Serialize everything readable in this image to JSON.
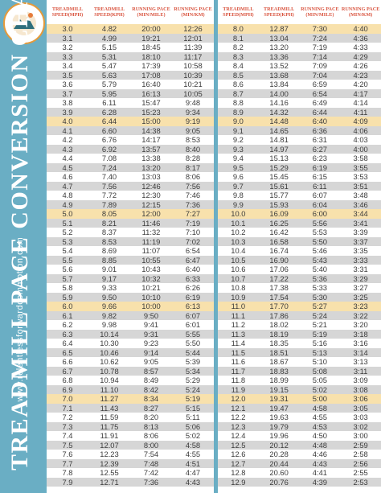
{
  "title": "TREADMILL PACE CONVERSION CHART",
  "website": "www.relentlessforwardcommotion.com",
  "logo_text": "COACH HEATHER HART · RUN COACHING FOR WOMEN",
  "headers": [
    "TREADMILL SPEED(MPH)",
    "TREADMILL SPEED(KPH)",
    "RUNNING PACE (MIN/MILE)",
    "RUNNING PACE (MIN/KM)"
  ],
  "colors": {
    "accent": "#6aaec4",
    "header_text": "#d9543f",
    "highlight": "#f8e1ac",
    "stripe": "#d6d6d6"
  },
  "left_rows": [
    [
      "3.0",
      "4.82",
      "20:00",
      "12:26"
    ],
    [
      "3.1",
      "4.99",
      "19:21",
      "12:01"
    ],
    [
      "3.2",
      "5.15",
      "18:45",
      "11:39"
    ],
    [
      "3.3",
      "5.31",
      "18:10",
      "11:17"
    ],
    [
      "3.4",
      "5.47",
      "17:39",
      "10:58"
    ],
    [
      "3.5",
      "5.63",
      "17:08",
      "10:39"
    ],
    [
      "3.6",
      "5.79",
      "16:40",
      "10:21"
    ],
    [
      "3.7",
      "5.95",
      "16:13",
      "10:05"
    ],
    [
      "3.8",
      "6.11",
      "15:47",
      "9:48"
    ],
    [
      "3.9",
      "6.28",
      "15:23",
      "9:34"
    ],
    [
      "4.0",
      "6.44",
      "15:00",
      "9:19"
    ],
    [
      "4.1",
      "6.60",
      "14:38",
      "9:05"
    ],
    [
      "4.2",
      "6.76",
      "14:17",
      "8:53"
    ],
    [
      "4.3",
      "6.92",
      "13:57",
      "8:40"
    ],
    [
      "4.4",
      "7.08",
      "13:38",
      "8:28"
    ],
    [
      "4.5",
      "7.24",
      "13:20",
      "8:17"
    ],
    [
      "4.6",
      "7.40",
      "13:03",
      "8:06"
    ],
    [
      "4.7",
      "7.56",
      "12:46",
      "7:56"
    ],
    [
      "4.8",
      "7.72",
      "12:30",
      "7:46"
    ],
    [
      "4.9",
      "7.89",
      "12:15",
      "7:36"
    ],
    [
      "5.0",
      "8.05",
      "12:00",
      "7:27"
    ],
    [
      "5.1",
      "8.21",
      "11:46",
      "7:19"
    ],
    [
      "5.2",
      "8.37",
      "11:32",
      "7:10"
    ],
    [
      "5.3",
      "8.53",
      "11:19",
      "7:02"
    ],
    [
      "5.4",
      "8.69",
      "11:07",
      "6:54"
    ],
    [
      "5.5",
      "8.85",
      "10:55",
      "6:47"
    ],
    [
      "5.6",
      "9.01",
      "10:43",
      "6:40"
    ],
    [
      "5.7",
      "9.17",
      "10:32",
      "6:33"
    ],
    [
      "5.8",
      "9.33",
      "10:21",
      "6:26"
    ],
    [
      "5.9",
      "9.50",
      "10:10",
      "6:19"
    ],
    [
      "6.0",
      "9.66",
      "10:00",
      "6:13"
    ],
    [
      "6.1",
      "9.82",
      "9:50",
      "6:07"
    ],
    [
      "6.2",
      "9.98",
      "9:41",
      "6:01"
    ],
    [
      "6.3",
      "10.14",
      "9:31",
      "5:55"
    ],
    [
      "6.4",
      "10.30",
      "9:23",
      "5:50"
    ],
    [
      "6.5",
      "10.46",
      "9:14",
      "5:44"
    ],
    [
      "6.6",
      "10.62",
      "9:05",
      "5:39"
    ],
    [
      "6.7",
      "10.78",
      "8:57",
      "5:34"
    ],
    [
      "6.8",
      "10.94",
      "8:49",
      "5:29"
    ],
    [
      "6.9",
      "11.10",
      "8:42",
      "5:24"
    ],
    [
      "7.0",
      "11.27",
      "8:34",
      "5:19"
    ],
    [
      "7.1",
      "11.43",
      "8:27",
      "5:15"
    ],
    [
      "7.2",
      "11.59",
      "8:20",
      "5:11"
    ],
    [
      "7.3",
      "11.75",
      "8:13",
      "5:06"
    ],
    [
      "7.4",
      "11.91",
      "8:06",
      "5:02"
    ],
    [
      "7.5",
      "12.07",
      "8:00",
      "4:58"
    ],
    [
      "7.6",
      "12.23",
      "7:54",
      "4:55"
    ],
    [
      "7.7",
      "12.39",
      "7:48",
      "4:51"
    ],
    [
      "7.8",
      "12.55",
      "7:42",
      "4:47"
    ],
    [
      "7.9",
      "12.71",
      "7:36",
      "4:43"
    ]
  ],
  "right_rows": [
    [
      "8.0",
      "12.87",
      "7:30",
      "4:40"
    ],
    [
      "8.1",
      "13.04",
      "7:24",
      "4:36"
    ],
    [
      "8.2",
      "13.20",
      "7:19",
      "4:33"
    ],
    [
      "8.3",
      "13.36",
      "7:14",
      "4:29"
    ],
    [
      "8.4",
      "13.52",
      "7:09",
      "4:26"
    ],
    [
      "8.5",
      "13.68",
      "7:04",
      "4:23"
    ],
    [
      "8.6",
      "13.84",
      "6:59",
      "4:20"
    ],
    [
      "8.7",
      "14.00",
      "6:54",
      "4:17"
    ],
    [
      "8.8",
      "14.16",
      "6:49",
      "4:14"
    ],
    [
      "8.9",
      "14.32",
      "6:44",
      "4:11"
    ],
    [
      "9.0",
      "14.48",
      "6:40",
      "4:09"
    ],
    [
      "9.1",
      "14.65",
      "6:36",
      "4:06"
    ],
    [
      "9.2",
      "14.81",
      "6:31",
      "4:03"
    ],
    [
      "9.3",
      "14.97",
      "6:27",
      "4:00"
    ],
    [
      "9.4",
      "15.13",
      "6:23",
      "3:58"
    ],
    [
      "9.5",
      "15.29",
      "6:19",
      "3:55"
    ],
    [
      "9.6",
      "15.45",
      "6:15",
      "3:53"
    ],
    [
      "9.7",
      "15.61",
      "6:11",
      "3:51"
    ],
    [
      "9.8",
      "15.77",
      "6:07",
      "3:48"
    ],
    [
      "9.9",
      "15.93",
      "6:04",
      "3:46"
    ],
    [
      "10.0",
      "16.09",
      "6:00",
      "3:44"
    ],
    [
      "10.1",
      "16.25",
      "5:56",
      "3:41"
    ],
    [
      "10.2",
      "16.42",
      "5:53",
      "3:39"
    ],
    [
      "10.3",
      "16.58",
      "5:50",
      "3:37"
    ],
    [
      "10.4",
      "16.74",
      "5:46",
      "3:35"
    ],
    [
      "10.5",
      "16.90",
      "5:43",
      "3:33"
    ],
    [
      "10.6",
      "17.06",
      "5:40",
      "3:31"
    ],
    [
      "10.7",
      "17.22",
      "5:36",
      "3:29"
    ],
    [
      "10.8",
      "17.38",
      "5:33",
      "3:27"
    ],
    [
      "10.9",
      "17.54",
      "5:30",
      "3:25"
    ],
    [
      "11.0",
      "17.70",
      "5:27",
      "3:23"
    ],
    [
      "11.1",
      "17.86",
      "5:24",
      "3:22"
    ],
    [
      "11.2",
      "18.02",
      "5:21",
      "3:20"
    ],
    [
      "11.3",
      "18.19",
      "5:19",
      "3:18"
    ],
    [
      "11.4",
      "18.35",
      "5:16",
      "3:16"
    ],
    [
      "11.5",
      "18.51",
      "5:13",
      "3:14"
    ],
    [
      "11.6",
      "18.67",
      "5:10",
      "3:13"
    ],
    [
      "11.7",
      "18.83",
      "5:08",
      "3:11"
    ],
    [
      "11.8",
      "18.99",
      "5:05",
      "3:09"
    ],
    [
      "11.9",
      "19.15",
      "5:02",
      "3:08"
    ],
    [
      "12.0",
      "19.31",
      "5:00",
      "3:06"
    ],
    [
      "12.1",
      "19.47",
      "4:58",
      "3:05"
    ],
    [
      "12.2",
      "19.63",
      "4:55",
      "3:03"
    ],
    [
      "12.3",
      "19.79",
      "4:53",
      "3:02"
    ],
    [
      "12.4",
      "19.96",
      "4:50",
      "3:00"
    ],
    [
      "12.5",
      "20.12",
      "4:48",
      "2:59"
    ],
    [
      "12.6",
      "20.28",
      "4:46",
      "2:58"
    ],
    [
      "12.7",
      "20.44",
      "4:43",
      "2:56"
    ],
    [
      "12.8",
      "20.60",
      "4:41",
      "2:55"
    ],
    [
      "12.9",
      "20.76",
      "4:39",
      "2:53"
    ]
  ]
}
